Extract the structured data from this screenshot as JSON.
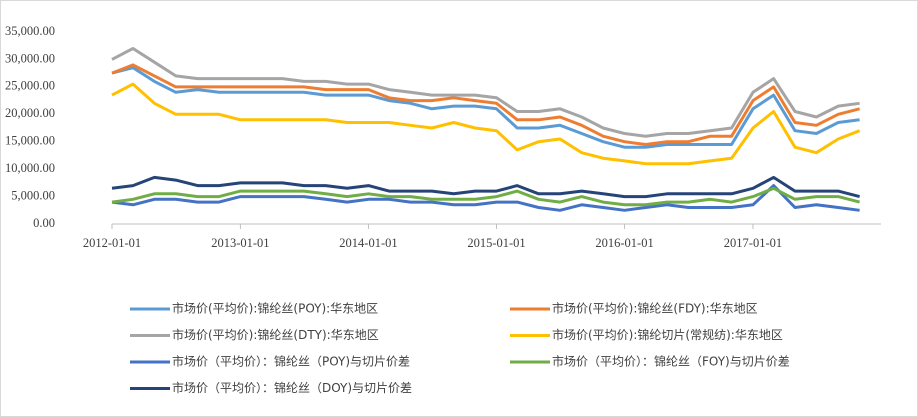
{
  "chart_data": {
    "type": "line",
    "x": [
      "2012-01-01",
      "2012-03-01",
      "2012-05-01",
      "2012-07-01",
      "2012-09-01",
      "2012-11-01",
      "2013-01-01",
      "2013-03-01",
      "2013-05-01",
      "2013-07-01",
      "2013-09-01",
      "2013-11-01",
      "2014-01-01",
      "2014-03-01",
      "2014-05-01",
      "2014-07-01",
      "2014-09-01",
      "2014-11-01",
      "2015-01-01",
      "2015-03-01",
      "2015-05-01",
      "2015-07-01",
      "2015-09-01",
      "2015-11-01",
      "2016-01-01",
      "2016-03-01",
      "2016-05-01",
      "2016-07-01",
      "2016-09-01",
      "2016-11-01",
      "2017-01-01",
      "2017-03-01",
      "2017-05-01",
      "2017-07-01",
      "2017-09-01",
      "2017-11-01"
    ],
    "series": [
      {
        "name": "市场价(平均价):锦纶丝(POY):华东地区",
        "color": "#5b9bd5",
        "values": [
          27500,
          28500,
          26000,
          24000,
          24500,
          24000,
          24000,
          24000,
          24000,
          24000,
          23500,
          23500,
          23500,
          22500,
          22000,
          21000,
          21500,
          21500,
          21000,
          17500,
          17500,
          18000,
          16500,
          15000,
          14000,
          14000,
          14500,
          14500,
          14500,
          14500,
          21000,
          23500,
          17000,
          16500,
          18500,
          19000
        ]
      },
      {
        "name": "市场价(平均价):锦纶丝(FDY):华东地区",
        "color": "#ed7d31",
        "values": [
          27500,
          29000,
          27000,
          25000,
          25000,
          25000,
          25000,
          25000,
          25000,
          25000,
          24500,
          24500,
          24500,
          23000,
          22500,
          22500,
          23000,
          22500,
          22000,
          19000,
          19000,
          19500,
          18000,
          16000,
          15000,
          14500,
          15000,
          15000,
          16000,
          16000,
          22500,
          25000,
          18500,
          18000,
          20000,
          21000
        ]
      },
      {
        "name": "市场价(平均价):锦纶丝(DTY):华东地区",
        "color": "#a5a5a5",
        "values": [
          30000,
          32000,
          29500,
          27000,
          26500,
          26500,
          26500,
          26500,
          26500,
          26000,
          26000,
          25500,
          25500,
          24500,
          24000,
          23500,
          23500,
          23500,
          23000,
          20500,
          20500,
          21000,
          19500,
          17500,
          16500,
          16000,
          16500,
          16500,
          17000,
          17500,
          24000,
          26500,
          20500,
          19500,
          21500,
          22000
        ]
      },
      {
        "name": "市场价(平均价):锦纶切片(常规纺):华东地区",
        "color": "#ffc000",
        "values": [
          23500,
          25500,
          22000,
          20000,
          20000,
          20000,
          19000,
          19000,
          19000,
          19000,
          19000,
          18500,
          18500,
          18500,
          18000,
          17500,
          18500,
          17500,
          17000,
          13500,
          15000,
          15500,
          13000,
          12000,
          11500,
          11000,
          11000,
          11000,
          11500,
          12000,
          17500,
          20500,
          14000,
          13000,
          15500,
          17000
        ]
      },
      {
        "name": "市场价（平均价）：锦纶丝（POY)与切片价差",
        "color": "#4472c4",
        "values": [
          4000,
          3500,
          4500,
          4500,
          4000,
          4000,
          5000,
          5000,
          5000,
          5000,
          4500,
          4000,
          4500,
          4500,
          4000,
          4000,
          3500,
          3500,
          4000,
          4000,
          3000,
          2500,
          3500,
          3000,
          2500,
          3000,
          3500,
          3000,
          3000,
          3000,
          3500,
          7000,
          3000,
          3500,
          3000,
          2500
        ]
      },
      {
        "name": "市场价（平均价）：锦纶丝（FOY)与切片价差",
        "color": "#70ad47",
        "values": [
          4000,
          4500,
          5500,
          5500,
          5000,
          5000,
          6000,
          6000,
          6000,
          6000,
          5500,
          5000,
          5500,
          5000,
          5000,
          4500,
          4500,
          4500,
          5000,
          6000,
          4500,
          4000,
          5000,
          4000,
          3500,
          3500,
          4000,
          4000,
          4500,
          4000,
          5000,
          6500,
          4500,
          5000,
          5000,
          4000
        ]
      },
      {
        "name": "市场价（平均价）：锦纶丝（DOY)与切片价差",
        "color": "#264478",
        "values": [
          6500,
          7000,
          8500,
          8000,
          7000,
          7000,
          7500,
          7500,
          7500,
          7000,
          7000,
          6500,
          7000,
          6000,
          6000,
          6000,
          5500,
          6000,
          6000,
          7000,
          5500,
          5500,
          6000,
          5500,
          5000,
          5000,
          5500,
          5500,
          5500,
          5500,
          6500,
          8500,
          6000,
          6000,
          6000,
          5000
        ]
      }
    ],
    "xlim": [
      "2012-01-01",
      "2018-01-01"
    ],
    "xticks": [
      "2012-01-01",
      "2013-01-01",
      "2014-01-01",
      "2015-01-01",
      "2016-01-01",
      "2017-01-01"
    ],
    "ylim": [
      0,
      35000
    ],
    "yticks": [
      {
        "value": 0,
        "label": "0.00"
      },
      {
        "value": 5000,
        "label": "5,000.00"
      },
      {
        "value": 10000,
        "label": "10,000.00"
      },
      {
        "value": 15000,
        "label": "15,000.00"
      },
      {
        "value": 20000,
        "label": "20,000.00"
      },
      {
        "value": 25000,
        "label": "25,000.00"
      },
      {
        "value": 30000,
        "label": "30,000.00"
      },
      {
        "value": 35000,
        "label": "35,000.00"
      }
    ],
    "grid": false
  }
}
